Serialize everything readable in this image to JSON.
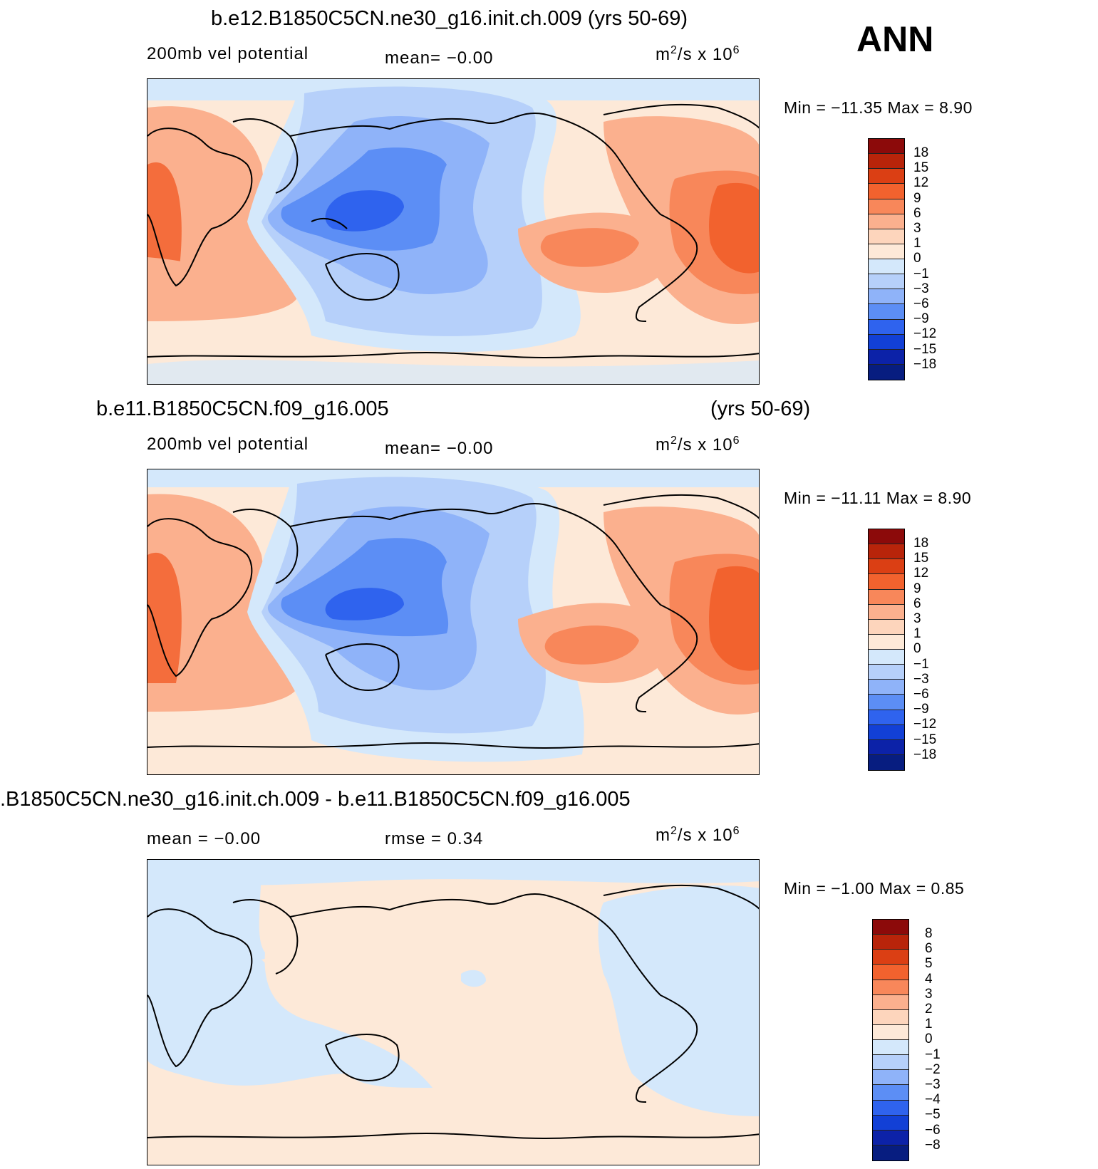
{
  "season": "ANN",
  "panels": [
    {
      "title": "b.e12.B1850C5CN.ne30_g16.init.ch.009 (yrs 50-69)",
      "variable": "200mb vel potential",
      "stat_left": "mean=   −0.00",
      "units_base": "m",
      "units_mid": "/s x 10",
      "units_exp2": "2",
      "units_exp6": "6",
      "min_max": "Min = −11.35 Max =   8.90",
      "colorbar": {
        "labels": [
          "18",
          "15",
          "12",
          "9",
          "6",
          "3",
          "1",
          "0",
          "−1",
          "−3",
          "−6",
          "−9",
          "−12",
          "−15",
          "−18"
        ],
        "colors": [
          "#8c0a0a",
          "#b8240a",
          "#db3f14",
          "#f2622e",
          "#f8875a",
          "#fbb08e",
          "#fdd5bc",
          "#fde9d8",
          "#d4e8fb",
          "#b6d0fa",
          "#8fb3f9",
          "#5c8ef5",
          "#2f63ee",
          "#1240d6",
          "#0c22a8",
          "#071d80"
        ]
      }
    },
    {
      "title_left": "b.e11.B1850C5CN.f09_g16.005",
      "title_right": "(yrs 50-69)",
      "variable": "200mb vel potential",
      "stat_left": "mean=   −0.00",
      "units_base": "m",
      "units_mid": "/s x 10",
      "units_exp2": "2",
      "units_exp6": "6",
      "min_max": "Min = −11.11 Max =   8.90",
      "colorbar": {
        "labels": [
          "18",
          "15",
          "12",
          "9",
          "6",
          "3",
          "1",
          "0",
          "−1",
          "−3",
          "−6",
          "−9",
          "−12",
          "−15",
          "−18"
        ],
        "colors": [
          "#8c0a0a",
          "#b8240a",
          "#db3f14",
          "#f2622e",
          "#f8875a",
          "#fbb08e",
          "#fdd5bc",
          "#fde9d8",
          "#d4e8fb",
          "#b6d0fa",
          "#8fb3f9",
          "#5c8ef5",
          "#2f63ee",
          "#1240d6",
          "#0c22a8",
          "#071d80"
        ]
      }
    },
    {
      "title": ".B1850C5CN.ne30_g16.init.ch.009 - b.e11.B1850C5CN.f09_g16.005",
      "stat_left": "mean =   −0.00",
      "stat_mid": "rmse =    0.34",
      "units_base": "m",
      "units_mid": "/s x 10",
      "units_exp2": "2",
      "units_exp6": "6",
      "min_max": "Min =   −1.00 Max =   0.85",
      "colorbar": {
        "labels": [
          "8",
          "6",
          "5",
          "4",
          "3",
          "2",
          "1",
          "0",
          "−1",
          "−2",
          "−3",
          "−4",
          "−5",
          "−6",
          "−8"
        ],
        "colors": [
          "#8c0a0a",
          "#b8240a",
          "#db3f14",
          "#f2622e",
          "#f8875a",
          "#fbb08e",
          "#fdd5bc",
          "#fde9d8",
          "#d4e8fb",
          "#b6d0fa",
          "#8fb3f9",
          "#5c8ef5",
          "#2f63ee",
          "#1240d6",
          "#0c22a8",
          "#071d80"
        ]
      }
    }
  ]
}
